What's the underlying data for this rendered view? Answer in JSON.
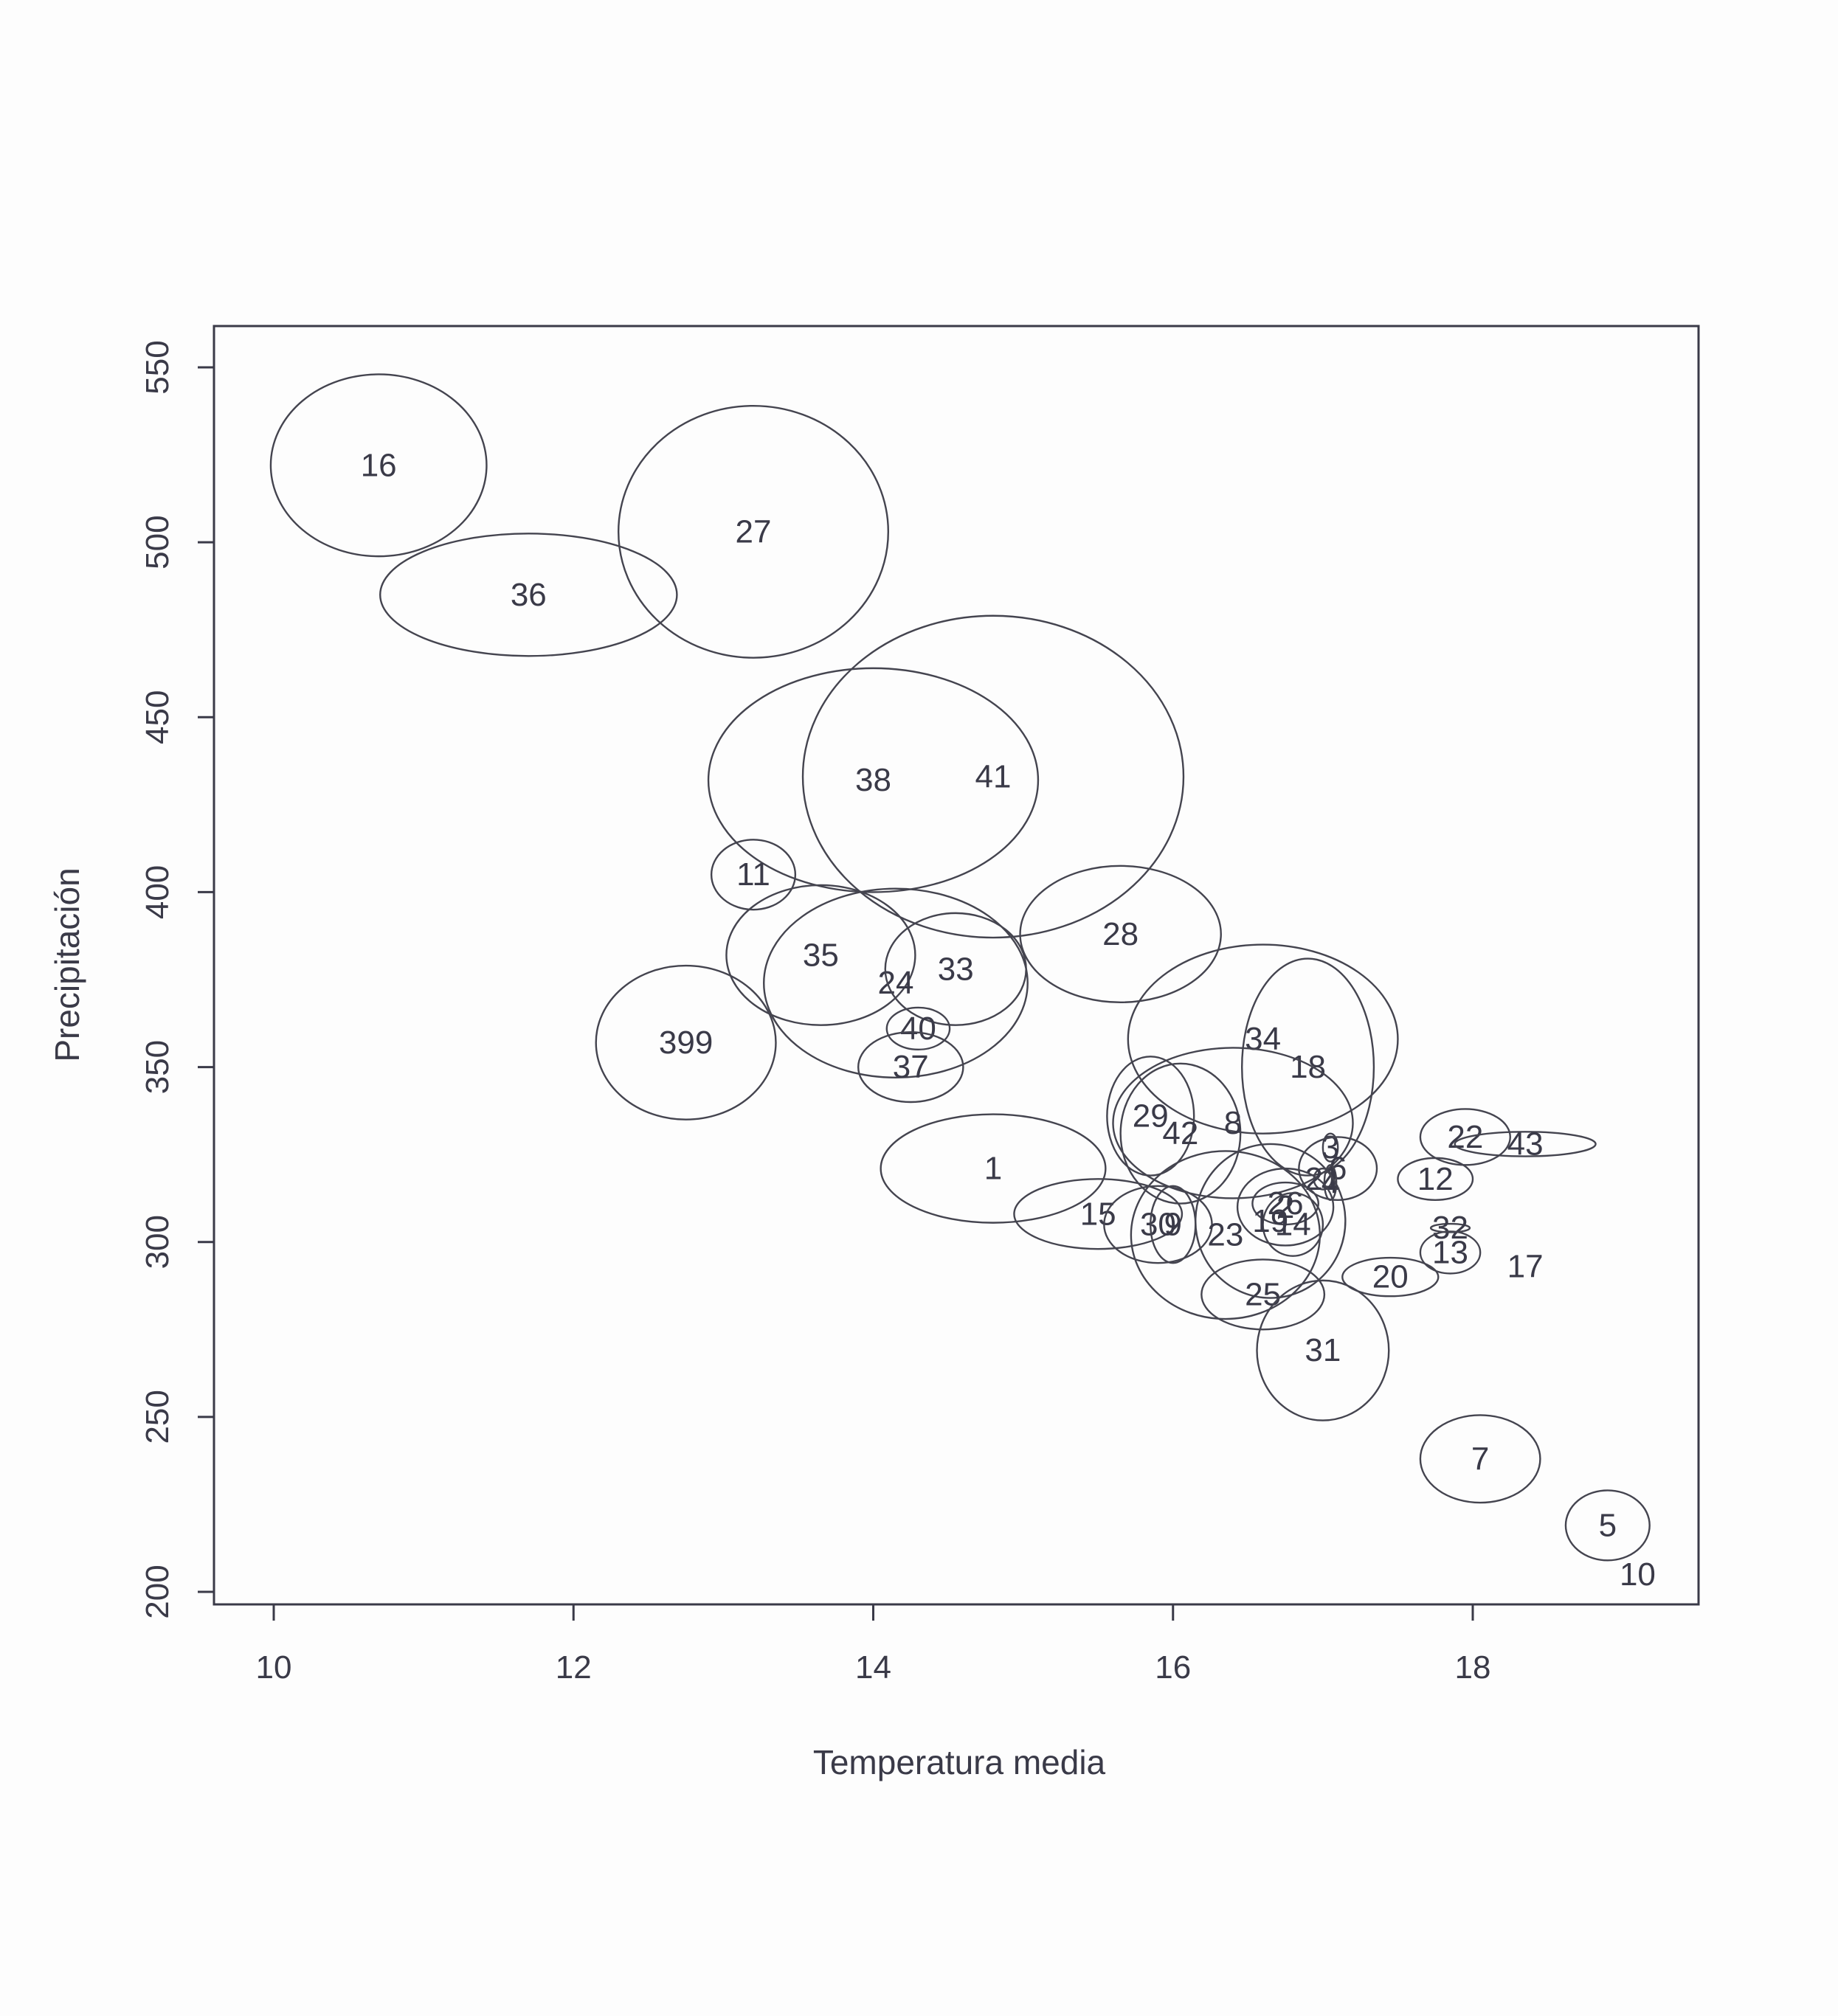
{
  "chart_data": {
    "type": "scatter",
    "title": "",
    "xlabel": "Temperatura media",
    "ylabel": "Precipitación",
    "xlim": [
      9.6,
      19.5
    ],
    "ylim": [
      188,
      560
    ],
    "xticks": [
      10,
      12,
      14,
      16,
      18
    ],
    "yticks": [
      200,
      250,
      300,
      350,
      400,
      450,
      500,
      550
    ],
    "xtick_labels": [
      "10",
      "12",
      "14",
      "16",
      "18"
    ],
    "ytick_labels": [
      "200",
      "250",
      "300",
      "350",
      "400",
      "450",
      "500",
      "550"
    ],
    "grid": false,
    "legend": "none",
    "marker": "ellipse",
    "points": [
      {
        "label": "16",
        "x": 10.7,
        "y": 522,
        "rx": 0.72,
        "ry": 26
      },
      {
        "label": "36",
        "x": 11.7,
        "y": 485,
        "rx": 0.99,
        "ry": 17.5
      },
      {
        "label": "27",
        "x": 13.2,
        "y": 503,
        "rx": 0.9,
        "ry": 36
      },
      {
        "label": "38",
        "x": 14.0,
        "y": 432,
        "rx": 1.1,
        "ry": 32
      },
      {
        "label": "41",
        "x": 14.8,
        "y": 433,
        "rx": 1.27,
        "ry": 46
      },
      {
        "label": "11",
        "x": 13.2,
        "y": 405,
        "rx": 0.28,
        "ry": 10
      },
      {
        "label": "35",
        "x": 13.65,
        "y": 382,
        "rx": 0.63,
        "ry": 20
      },
      {
        "label": "24",
        "x": 14.15,
        "y": 374,
        "rx": 0.88,
        "ry": 27
      },
      {
        "label": "33",
        "x": 14.55,
        "y": 378,
        "rx": 0.47,
        "ry": 16
      },
      {
        "label": "28",
        "x": 15.65,
        "y": 388,
        "rx": 0.67,
        "ry": 19.5
      },
      {
        "label": "399",
        "x": 12.75,
        "y": 357,
        "rx": 0.6,
        "ry": 22
      },
      {
        "label": "40",
        "x": 14.3,
        "y": 361,
        "rx": 0.21,
        "ry": 6
      },
      {
        "label": "37",
        "x": 14.25,
        "y": 350,
        "rx": 0.35,
        "ry": 10
      },
      {
        "label": "1",
        "x": 14.8,
        "y": 321,
        "rx": 0.75,
        "ry": 15.5
      },
      {
        "label": "15",
        "x": 15.5,
        "y": 308,
        "rx": 0.56,
        "ry": 10
      },
      {
        "label": "30",
        "x": 15.9,
        "y": 305,
        "rx": 0.36,
        "ry": 11
      },
      {
        "label": "9",
        "x": 16.0,
        "y": 305,
        "rx": 0.15,
        "ry": 11
      },
      {
        "label": "29",
        "x": 15.85,
        "y": 336,
        "rx": 0.29,
        "ry": 17
      },
      {
        "label": "42",
        "x": 16.05,
        "y": 331,
        "rx": 0.4,
        "ry": 20
      },
      {
        "label": "34",
        "x": 16.6,
        "y": 358,
        "rx": 0.9,
        "ry": 27
      },
      {
        "label": "18",
        "x": 16.9,
        "y": 350,
        "rx": 0.44,
        "ry": 31
      },
      {
        "label": "8",
        "x": 16.4,
        "y": 334,
        "rx": 0.8,
        "ry": 21.5
      },
      {
        "label": "3",
        "x": 17.05,
        "y": 327,
        "rx": 0.05,
        "ry": 4
      },
      {
        "label": "6",
        "x": 17.1,
        "y": 321,
        "rx": 0.26,
        "ry": 9
      },
      {
        "label": "21",
        "x": 17.0,
        "y": 318,
        "rx": 0.06,
        "ry": 3
      },
      {
        "label": "4",
        "x": 17.05,
        "y": 317,
        "rx": 0.04,
        "ry": 5
      },
      {
        "label": "26",
        "x": 16.75,
        "y": 311,
        "rx": 0.22,
        "ry": 6
      },
      {
        "label": "2",
        "x": 16.75,
        "y": 310,
        "rx": 0.32,
        "ry": 11
      },
      {
        "label": "14",
        "x": 16.8,
        "y": 305,
        "rx": 0.2,
        "ry": 9
      },
      {
        "label": "23",
        "x": 16.35,
        "y": 302,
        "rx": 0.63,
        "ry": 24
      },
      {
        "label": "19",
        "x": 16.65,
        "y": 306,
        "rx": 0.5,
        "ry": 22
      },
      {
        "label": "25",
        "x": 16.6,
        "y": 285,
        "rx": 0.41,
        "ry": 10
      },
      {
        "label": "31",
        "x": 17.0,
        "y": 269,
        "rx": 0.44,
        "ry": 20
      },
      {
        "label": "20",
        "x": 17.45,
        "y": 290,
        "rx": 0.32,
        "ry": 5.5
      },
      {
        "label": "22",
        "x": 17.95,
        "y": 330,
        "rx": 0.3,
        "ry": 8
      },
      {
        "label": "43",
        "x": 18.35,
        "y": 328,
        "rx": 0.47,
        "ry": 3.5
      },
      {
        "label": "12",
        "x": 17.75,
        "y": 318,
        "rx": 0.25,
        "ry": 6
      },
      {
        "label": "32",
        "x": 17.85,
        "y": 304,
        "rx": 0.13,
        "ry": 1.2
      },
      {
        "label": "13",
        "x": 17.85,
        "y": 297,
        "rx": 0.2,
        "ry": 6
      },
      {
        "label": "17",
        "x": 18.35,
        "y": 293,
        "rx": 0,
        "ry": 0
      },
      {
        "label": "7",
        "x": 18.05,
        "y": 238,
        "rx": 0.4,
        "ry": 12.5
      },
      {
        "label": "5",
        "x": 18.9,
        "y": 219,
        "rx": 0.28,
        "ry": 10
      },
      {
        "label": "10",
        "x": 19.1,
        "y": 205,
        "rx": 0,
        "ry": 0
      }
    ]
  }
}
